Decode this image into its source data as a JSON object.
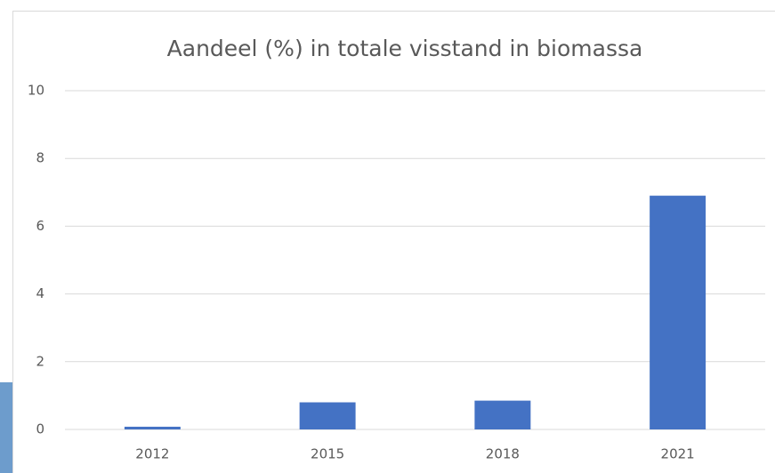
{
  "chart_data": {
    "type": "bar",
    "title": "Aandeel (%) in totale visstand in biomassa",
    "categories": [
      "2012",
      "2015",
      "2018",
      "2021"
    ],
    "values": [
      0.08,
      0.8,
      0.85,
      6.9
    ],
    "color": "#4472c4",
    "ylim": [
      0,
      10
    ],
    "yticks": [
      0,
      2,
      4,
      6,
      8,
      10
    ],
    "grid": true
  }
}
